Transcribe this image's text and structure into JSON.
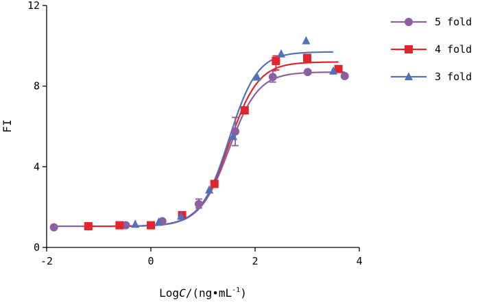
{
  "chart_data": {
    "type": "scatter",
    "title": "",
    "xlabel": "LogC/(ng•mL⁻¹)",
    "xlabel_parts": {
      "prefix": "Log",
      "italic": "C",
      "unit": "/(ng•mL",
      "superscript": "-1",
      "suffix": ")"
    },
    "ylabel": "FI",
    "xlim": [
      -2,
      4
    ],
    "ylim": [
      0,
      12
    ],
    "xticks": [
      "-2",
      "0",
      "2",
      "4"
    ],
    "yticks": [
      "0",
      "4",
      "8",
      "12"
    ],
    "grid": false,
    "legend_position": "top-right",
    "series": [
      {
        "name": "5 fold",
        "color": "#8e5ea2",
        "marker": "circle",
        "fit": {
          "bottom": 1.05,
          "top": 8.7,
          "logEC50": 1.5,
          "hill": 1.55
        },
        "x": [
          -1.86,
          -1.2,
          -0.48,
          0.22,
          0.92,
          1.62,
          2.34,
          3.01,
          3.72
        ],
        "y": [
          1.0,
          1.05,
          1.1,
          1.3,
          2.15,
          5.75,
          8.45,
          8.7,
          8.5
        ]
      },
      {
        "name": "4 fold",
        "color": "#e2242b",
        "marker": "square",
        "fit": {
          "bottom": 1.05,
          "top": 9.2,
          "logEC50": 1.5,
          "hill": 1.55
        },
        "x": [
          -1.2,
          -0.6,
          0.0,
          0.6,
          1.22,
          1.8,
          2.4,
          3.0,
          3.6
        ],
        "y": [
          1.05,
          1.1,
          1.1,
          1.6,
          3.15,
          6.8,
          9.25,
          9.4,
          8.85
        ]
      },
      {
        "name": "3 fold",
        "color": "#4f72b8",
        "marker": "triangle",
        "fit": {
          "bottom": 1.05,
          "top": 9.7,
          "logEC50": 1.5,
          "hill": 1.6
        },
        "x": [
          -0.3,
          0.15,
          0.58,
          1.12,
          1.58,
          2.04,
          2.5,
          2.98,
          3.5
        ],
        "y": [
          1.15,
          1.25,
          1.55,
          2.85,
          5.5,
          8.45,
          9.6,
          10.25,
          8.75
        ]
      }
    ],
    "error_bars": [
      {
        "series": "5 fold",
        "x": 0.92,
        "low": 1.95,
        "high": 2.4
      },
      {
        "series": "5 fold",
        "x": 1.62,
        "low": 5.05,
        "high": 6.45
      },
      {
        "series": "4 fold",
        "x": 2.4,
        "low": 8.8,
        "high": 9.5
      },
      {
        "series": "5 fold",
        "x": 2.34,
        "low": 8.2,
        "high": 8.75
      }
    ]
  }
}
